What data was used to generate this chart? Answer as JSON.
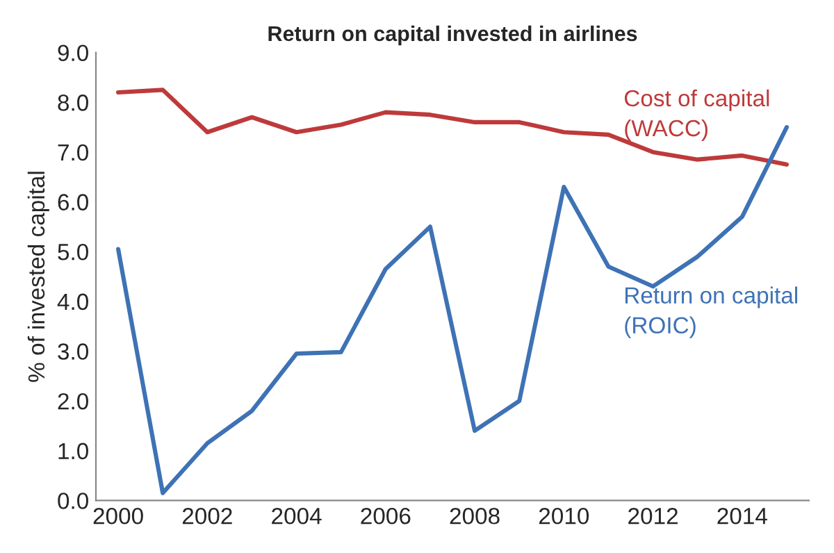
{
  "chart_data": {
    "type": "line",
    "title": "Return on capital invested in airlines",
    "ylabel": "% of invested capital",
    "categories": [
      "2000",
      null,
      "2002",
      null,
      "2004",
      null,
      "2006",
      null,
      "2008",
      null,
      "2010",
      null,
      "2012",
      null,
      "2014",
      null
    ],
    "series": [
      {
        "name": "Cost of capital\n(WACC)",
        "color": "#be3a3a",
        "values": [
          8.2,
          8.25,
          7.4,
          7.7,
          7.4,
          7.55,
          7.8,
          7.75,
          7.6,
          7.6,
          7.4,
          7.35,
          7.0,
          6.85,
          6.93,
          6.75
        ]
      },
      {
        "name": "Return on capital\n(ROIC)",
        "color": "#3e72b5",
        "values": [
          5.05,
          0.15,
          1.15,
          1.8,
          2.95,
          2.98,
          4.65,
          5.5,
          1.4,
          2.0,
          6.3,
          4.7,
          4.3,
          4.9,
          5.7,
          7.5
        ]
      }
    ],
    "ylim": [
      0,
      9
    ],
    "yticks": [
      {
        "value": 0,
        "label": "0.0"
      },
      {
        "value": 1,
        "label": "1.0"
      },
      {
        "value": 2,
        "label": "2.0"
      },
      {
        "value": 3,
        "label": "3.0"
      },
      {
        "value": 4,
        "label": "4.0"
      },
      {
        "value": 5,
        "label": "5.0"
      },
      {
        "value": 6,
        "label": "6.0"
      },
      {
        "value": 7,
        "label": "7.0"
      },
      {
        "value": 8,
        "label": "8.0"
      },
      {
        "value": 9,
        "label": "9.0"
      }
    ],
    "grid": false,
    "legend": false,
    "marker": "none",
    "line_style": "solid"
  }
}
